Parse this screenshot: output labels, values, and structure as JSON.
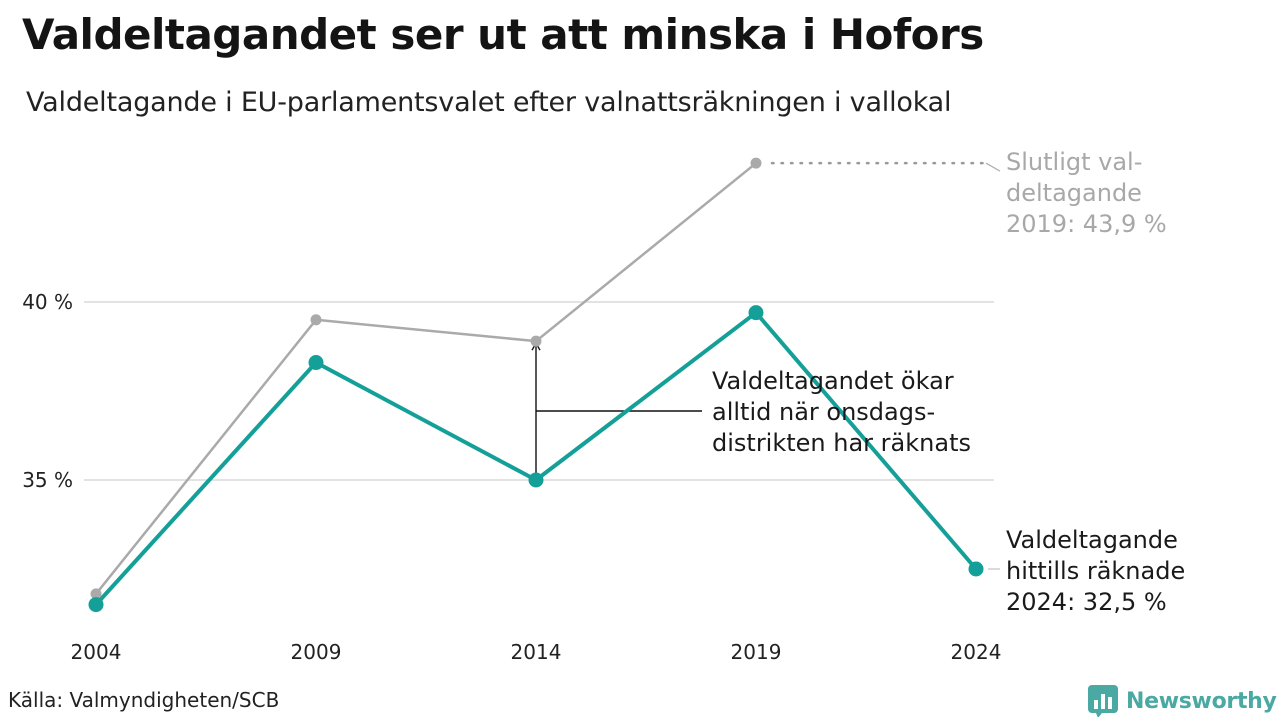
{
  "title": "Valdeltagandet ser ut att minska i Hofors",
  "subtitle": "Valdeltagande i EU-parlamentsvalet efter valnattsräkningen i vallokal",
  "source": "Källa: Valmyndigheten/SCB",
  "logo": {
    "text": "Newsworthy",
    "icon": "bar-chart-icon",
    "color": "#4aa9a2"
  },
  "chart_data": {
    "type": "line",
    "x": [
      2004,
      2009,
      2014,
      2019,
      2024
    ],
    "xticks": [
      "2004",
      "2009",
      "2014",
      "2019",
      "2024"
    ],
    "yticks": [
      {
        "value": 35,
        "label": "35 %"
      },
      {
        "value": 40,
        "label": "40 %"
      }
    ],
    "ylim": [
      30.5,
      45.5
    ],
    "grid": true,
    "series": [
      {
        "key": "final",
        "color": "#aaaaaa",
        "values": [
          31.8,
          39.5,
          38.9,
          43.9,
          null
        ]
      },
      {
        "key": "election_night",
        "color": "#14a098",
        "values": [
          31.5,
          38.3,
          35.0,
          39.7,
          32.5
        ]
      }
    ],
    "annotations": {
      "final_2019": [
        "Slutligt val-",
        "deltagande",
        "2019: 43,9 %"
      ],
      "current_2024": [
        "Valdeltagande",
        "hittills räknade",
        "2024: 32,5 %"
      ],
      "increase": [
        "Valdeltagandet ökar",
        "alltid när onsdags-",
        "distrikten har räknats"
      ]
    }
  }
}
